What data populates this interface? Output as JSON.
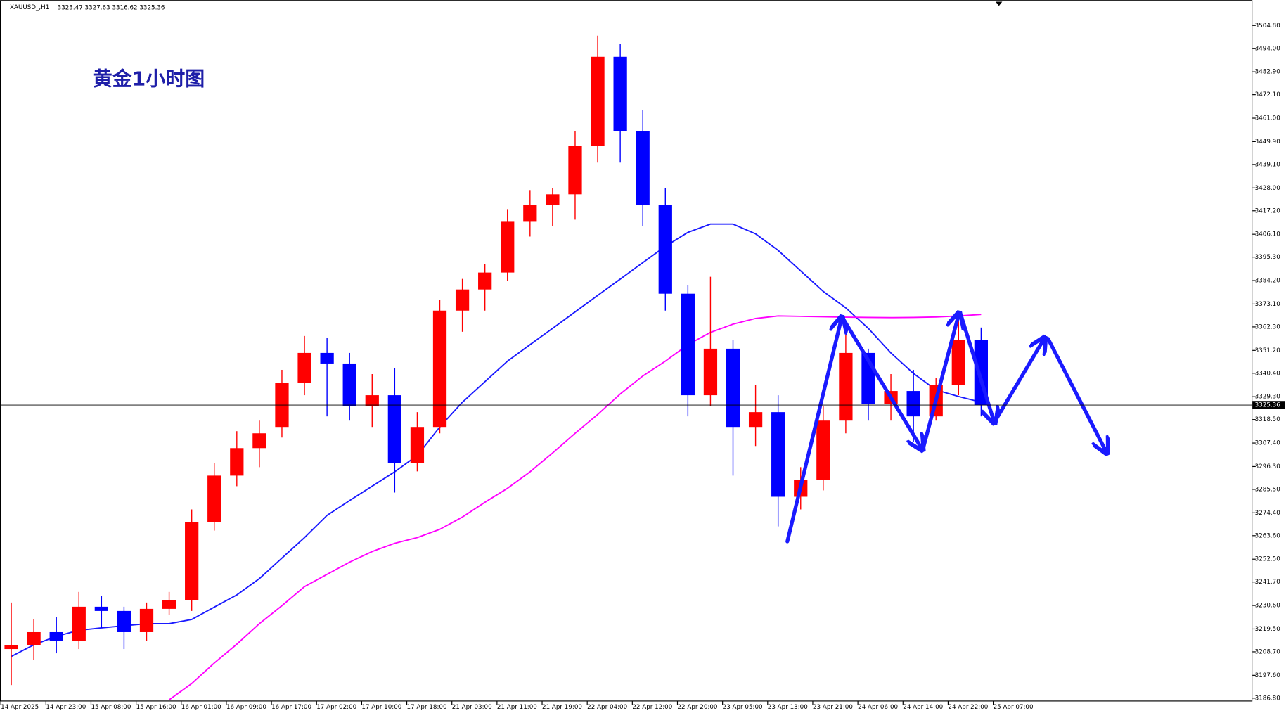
{
  "chart_data": {
    "type": "candlestick",
    "title": "黄金1小时图",
    "header": {
      "symbol": "XAUUSD_,H1",
      "ohlc": [
        3323.47,
        3327.63,
        3316.62,
        3325.36
      ]
    },
    "current_price": 3325.36,
    "up_color": "#ff0000",
    "down_color": "#0000ff",
    "categories": [
      "14 Apr 2025",
      null,
      "14 Apr 23:00",
      null,
      "15 Apr 08:00",
      null,
      "15 Apr 16:00",
      null,
      "16 Apr 01:00",
      null,
      "16 Apr 09:00",
      null,
      "16 Apr 17:00",
      null,
      "17 Apr 02:00",
      null,
      "17 Apr 10:00",
      null,
      "17 Apr 18:00",
      null,
      "21 Apr 03:00",
      null,
      "21 Apr 11:00",
      null,
      "21 Apr 19:00",
      null,
      "22 Apr 04:00",
      null,
      "22 Apr 12:00",
      null,
      "22 Apr 20:00",
      null,
      "23 Apr 05:00",
      null,
      "23 Apr 13:00",
      null,
      "23 Apr 21:00",
      null,
      "24 Apr 06:00",
      null,
      "24 Apr 14:00",
      null,
      "24 Apr 22:00",
      null,
      "25 Apr 07:00"
    ],
    "open": [
      3210,
      3212,
      3218,
      3214,
      3230,
      3228,
      3218,
      3229,
      3233,
      3270,
      3292,
      3305,
      3315,
      3336,
      3350,
      3345,
      3325,
      3330,
      3298,
      3315,
      3370,
      3380,
      3388,
      3412,
      3420,
      3425,
      3448,
      3490,
      3455,
      3420,
      3378,
      3330,
      3352,
      3315,
      3322,
      3282,
      3290,
      3318,
      3350,
      3326,
      3332,
      3320,
      3335,
      3356,
      null
    ],
    "high": [
      3232,
      3224,
      3225,
      3237,
      3235,
      3230,
      3232,
      3237,
      3276,
      3298,
      3313,
      3318,
      3342,
      3358,
      3357,
      3350,
      3340,
      3343,
      3322,
      3375,
      3385,
      3392,
      3418,
      3427,
      3428,
      3455,
      3500,
      3496,
      3465,
      3428,
      3382,
      3386,
      3356,
      3335,
      3330,
      3296,
      3325,
      3365,
      3352,
      3340,
      3342,
      3338,
      3367,
      3362,
      null
    ],
    "low": [
      3193,
      3205,
      3208,
      3210,
      3220,
      3210,
      3214,
      3226,
      3228,
      3266,
      3287,
      3296,
      3310,
      3330,
      3320,
      3318,
      3315,
      3284,
      3294,
      3312,
      3360,
      3370,
      3384,
      3405,
      3410,
      3413,
      3440,
      3440,
      3410,
      3370,
      3320,
      3325,
      3292,
      3306,
      3268,
      3276,
      3285,
      3312,
      3318,
      3318,
      3308,
      3318,
      3330,
      3320,
      null
    ],
    "close": [
      3212,
      3218,
      3214,
      3230,
      3228,
      3218,
      3229,
      3233,
      3270,
      3292,
      3305,
      3312,
      3336,
      3350,
      3345,
      3325,
      3330,
      3298,
      3315,
      3370,
      3380,
      3388,
      3412,
      3420,
      3425,
      3448,
      3490,
      3455,
      3420,
      3378,
      3330,
      3352,
      3315,
      3322,
      3282,
      3290,
      3318,
      3350,
      3326,
      3332,
      3320,
      3335,
      3356,
      3325.36,
      null
    ],
    "lines": [
      {
        "color": "#1a1aff",
        "values": [
          3206.5,
          3212,
          3216,
          3218.9,
          3220,
          3221,
          3222,
          3222,
          3224,
          3229.8,
          3235.6,
          3243.3,
          3253,
          3262.7,
          3273.2,
          3280.2,
          3287,
          3293.8,
          3301.5,
          3315,
          3326.7,
          3336.4,
          3346.1,
          3353.9,
          3361.6,
          3369.4,
          3377.2,
          3384.9,
          3392.7,
          3400.4,
          3407,
          3410.9,
          3410.9,
          3406.3,
          3398.5,
          3388.8,
          3379.1,
          3371.3,
          3361.6,
          3350,
          3340.3,
          3332.5,
          3329.4,
          3326.7,
          null
        ]
      },
      {
        "color": "#ff00ff",
        "values": [
          null,
          null,
          null,
          null,
          null,
          null,
          null,
          3186,
          3193.7,
          3203.4,
          3212.3,
          3222,
          3230.5,
          3239.5,
          3245.3,
          3251.1,
          3256.1,
          3260,
          3262.7,
          3266.6,
          3272.4,
          3279.4,
          3286,
          3293.8,
          3302.7,
          3312,
          3320.9,
          3330.6,
          3339.1,
          3346.1,
          3353.9,
          3359.7,
          3363.6,
          3366.3,
          3367.5,
          3367.3,
          3367.1,
          3366.9,
          3366.8,
          3366.7,
          3366.8,
          3367,
          3367.5,
          3368.2,
          null
        ]
      }
    ],
    "ylim": [
      3185.25,
      3516.8
    ],
    "yticks": [
      {
        "value": 3504.8,
        "label": "3504.80"
      },
      {
        "value": 3494,
        "label": "3494.00"
      },
      {
        "value": 3482.9,
        "label": "3482.90"
      },
      {
        "value": 3472.1,
        "label": "3472.10"
      },
      {
        "value": 3461,
        "label": "3461.00"
      },
      {
        "value": 3449.9,
        "label": "3449.90"
      },
      {
        "value": 3439.1,
        "label": "3439.10"
      },
      {
        "value": 3428,
        "label": "3428.00"
      },
      {
        "value": 3417.2,
        "label": "3417.20"
      },
      {
        "value": 3406.1,
        "label": "3406.10"
      },
      {
        "value": 3395.3,
        "label": "3395.30"
      },
      {
        "value": 3384.2,
        "label": "3384.20"
      },
      {
        "value": 3373.1,
        "label": "3373.10"
      },
      {
        "value": 3362.3,
        "label": "3362.30"
      },
      {
        "value": 3351.2,
        "label": "3351.20"
      },
      {
        "value": 3340.4,
        "label": "3340.40"
      },
      {
        "value": 3329.3,
        "label": "3329.30"
      },
      {
        "value": 3318.5,
        "label": "3318.50"
      },
      {
        "value": 3307.4,
        "label": "3307.40"
      },
      {
        "value": 3296.3,
        "label": "3296.30"
      },
      {
        "value": 3285.5,
        "label": "3285.50"
      },
      {
        "value": 3274.4,
        "label": "3274.40"
      },
      {
        "value": 3263.6,
        "label": "3263.60"
      },
      {
        "value": 3252.5,
        "label": "3252.50"
      },
      {
        "value": 3241.7,
        "label": "3241.70"
      },
      {
        "value": 3230.6,
        "label": "3230.60"
      },
      {
        "value": 3219.5,
        "label": "3219.50"
      },
      {
        "value": 3208.7,
        "label": "3208.70"
      },
      {
        "value": 3197.6,
        "label": "3197.60"
      },
      {
        "value": 3186.8,
        "label": "3186.80"
      }
    ]
  }
}
